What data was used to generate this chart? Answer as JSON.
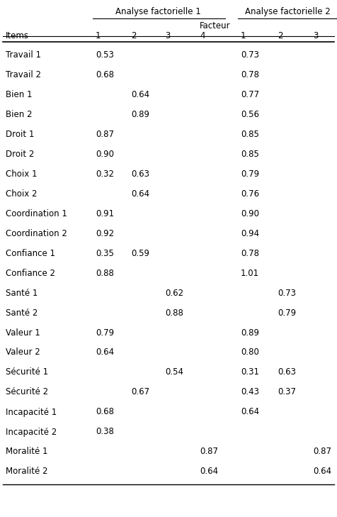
{
  "header_af1": "Analyse factorielle 1",
  "header_af2": "Analyse factorielle 2",
  "header_facteur": "Facteur",
  "col_labels": [
    "Items",
    "1",
    "2",
    "3",
    "4",
    "",
    "1",
    "2",
    "3"
  ],
  "rows": [
    {
      "item": "Travail 1",
      "af1": [
        "0.53",
        "",
        "",
        ""
      ],
      "af2": [
        "0.73",
        "",
        ""
      ]
    },
    {
      "item": "Travail 2",
      "af1": [
        "0.68",
        "",
        "",
        ""
      ],
      "af2": [
        "0.78",
        "",
        ""
      ]
    },
    {
      "item": "Bien 1",
      "af1": [
        "",
        "0.64",
        "",
        ""
      ],
      "af2": [
        "0.77",
        "",
        ""
      ]
    },
    {
      "item": "Bien 2",
      "af1": [
        "",
        "0.89",
        "",
        ""
      ],
      "af2": [
        "0.56",
        "",
        ""
      ]
    },
    {
      "item": "Droit 1",
      "af1": [
        "0.87",
        "",
        "",
        ""
      ],
      "af2": [
        "0.85",
        "",
        ""
      ]
    },
    {
      "item": "Droit 2",
      "af1": [
        "0.90",
        "",
        "",
        ""
      ],
      "af2": [
        "0.85",
        "",
        ""
      ]
    },
    {
      "item": "Choix 1",
      "af1": [
        "0.32",
        "0.63",
        "",
        ""
      ],
      "af2": [
        "0.79",
        "",
        ""
      ]
    },
    {
      "item": "Choix 2",
      "af1": [
        "",
        "0.64",
        "",
        ""
      ],
      "af2": [
        "0.76",
        "",
        ""
      ]
    },
    {
      "item": "Coordination 1",
      "af1": [
        "0.91",
        "",
        "",
        ""
      ],
      "af2": [
        "0.90",
        "",
        ""
      ]
    },
    {
      "item": "Coordination 2",
      "af1": [
        "0.92",
        "",
        "",
        ""
      ],
      "af2": [
        "0.94",
        "",
        ""
      ]
    },
    {
      "item": "Confiance 1",
      "af1": [
        "0.35",
        "0.59",
        "",
        ""
      ],
      "af2": [
        "0.78",
        "",
        ""
      ]
    },
    {
      "item": "Confiance 2",
      "af1": [
        "0.88",
        "",
        "",
        ""
      ],
      "af2": [
        "1.01",
        "",
        ""
      ]
    },
    {
      "item": "Santé 1",
      "af1": [
        "",
        "",
        "0.62",
        ""
      ],
      "af2": [
        "",
        "0.73",
        ""
      ]
    },
    {
      "item": "Santé 2",
      "af1": [
        "",
        "",
        "0.88",
        ""
      ],
      "af2": [
        "",
        "0.79",
        ""
      ]
    },
    {
      "item": "Valeur 1",
      "af1": [
        "0.79",
        "",
        "",
        ""
      ],
      "af2": [
        "0.89",
        "",
        ""
      ]
    },
    {
      "item": "Valeur 2",
      "af1": [
        "0.64",
        "",
        "",
        ""
      ],
      "af2": [
        "0.80",
        "",
        ""
      ]
    },
    {
      "item": "Sécurité 1",
      "af1": [
        "",
        "",
        "0.54",
        ""
      ],
      "af2": [
        "0.31",
        "0.63",
        ""
      ]
    },
    {
      "item": "Sécurité 2",
      "af1": [
        "",
        "0.67",
        "",
        ""
      ],
      "af2": [
        "0.43",
        "0.37",
        ""
      ]
    },
    {
      "item": "Incapacité 1",
      "af1": [
        "0.68",
        "",
        "",
        ""
      ],
      "af2": [
        "0.64",
        "",
        ""
      ]
    },
    {
      "item": "Incapacité 2",
      "af1": [
        "0.38",
        "",
        "",
        ""
      ],
      "af2": [
        "",
        "",
        ""
      ]
    },
    {
      "item": "Moralité 1",
      "af1": [
        "",
        "",
        "",
        "0.87"
      ],
      "af2": [
        "",
        "",
        "0.87"
      ]
    },
    {
      "item": "Moralité 2",
      "af1": [
        "",
        "",
        "",
        "0.64"
      ],
      "af2": [
        "",
        "",
        "0.64"
      ]
    }
  ],
  "bg_color": "#ffffff",
  "text_color": "#000000",
  "font_size": 8.5,
  "fig_width": 4.76,
  "fig_height": 7.29,
  "dpi": 100
}
